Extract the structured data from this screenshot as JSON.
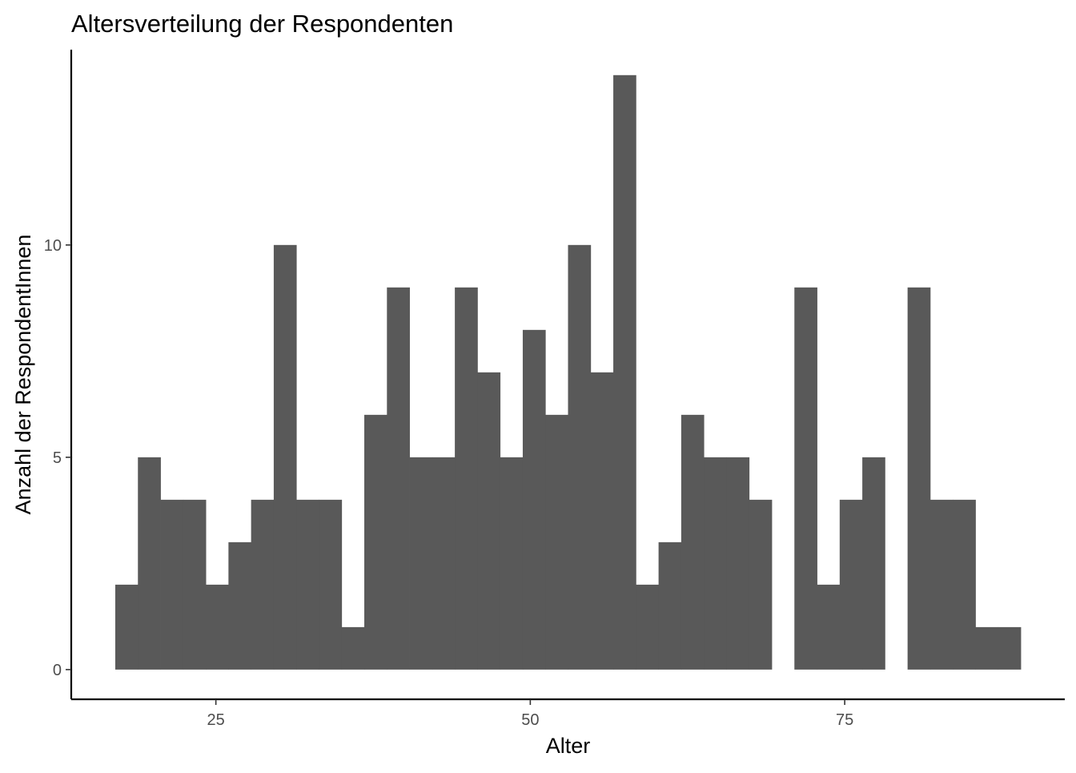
{
  "chart_data": {
    "type": "bar",
    "title": "Altersverteilung der Respondenten",
    "xlabel": "Alter",
    "ylabel": "Anzahl der RespondentInnen",
    "xlim": [
      13.5,
      92.5
    ],
    "ylim": [
      -0.7,
      14.6
    ],
    "xticks": [
      25,
      50,
      75
    ],
    "yticks": [
      0,
      5,
      10
    ],
    "grid": false,
    "bin_width": 1.8,
    "bins": [
      {
        "start": 17.0,
        "end": 18.8,
        "count": 2
      },
      {
        "start": 18.8,
        "end": 20.6,
        "count": 5
      },
      {
        "start": 20.6,
        "end": 22.4,
        "count": 4
      },
      {
        "start": 22.4,
        "end": 24.2,
        "count": 4
      },
      {
        "start": 24.2,
        "end": 26.0,
        "count": 2
      },
      {
        "start": 26.0,
        "end": 27.8,
        "count": 3
      },
      {
        "start": 27.8,
        "end": 29.6,
        "count": 4
      },
      {
        "start": 29.6,
        "end": 31.4,
        "count": 10
      },
      {
        "start": 31.4,
        "end": 33.2,
        "count": 4
      },
      {
        "start": 33.2,
        "end": 35.0,
        "count": 4
      },
      {
        "start": 35.0,
        "end": 36.8,
        "count": 1
      },
      {
        "start": 36.8,
        "end": 38.6,
        "count": 6
      },
      {
        "start": 38.6,
        "end": 40.4,
        "count": 9
      },
      {
        "start": 40.4,
        "end": 42.2,
        "count": 5
      },
      {
        "start": 42.2,
        "end": 44.0,
        "count": 5
      },
      {
        "start": 44.0,
        "end": 45.8,
        "count": 9
      },
      {
        "start": 45.8,
        "end": 47.6,
        "count": 7
      },
      {
        "start": 47.6,
        "end": 49.4,
        "count": 5
      },
      {
        "start": 49.4,
        "end": 51.2,
        "count": 8
      },
      {
        "start": 51.2,
        "end": 53.0,
        "count": 6
      },
      {
        "start": 53.0,
        "end": 54.8,
        "count": 10
      },
      {
        "start": 54.8,
        "end": 56.6,
        "count": 7
      },
      {
        "start": 56.6,
        "end": 58.4,
        "count": 14
      },
      {
        "start": 58.4,
        "end": 60.2,
        "count": 2
      },
      {
        "start": 60.2,
        "end": 62.0,
        "count": 3
      },
      {
        "start": 62.0,
        "end": 63.8,
        "count": 6
      },
      {
        "start": 63.8,
        "end": 65.6,
        "count": 5
      },
      {
        "start": 65.6,
        "end": 67.4,
        "count": 5
      },
      {
        "start": 67.4,
        "end": 69.2,
        "count": 4
      },
      {
        "start": 69.2,
        "end": 71.0,
        "count": 0
      },
      {
        "start": 71.0,
        "end": 72.8,
        "count": 9
      },
      {
        "start": 72.8,
        "end": 74.6,
        "count": 2
      },
      {
        "start": 74.6,
        "end": 76.4,
        "count": 4
      },
      {
        "start": 76.4,
        "end": 78.2,
        "count": 5
      },
      {
        "start": 78.2,
        "end": 80.0,
        "count": 0
      },
      {
        "start": 80.0,
        "end": 81.8,
        "count": 9
      },
      {
        "start": 81.8,
        "end": 83.6,
        "count": 4
      },
      {
        "start": 83.6,
        "end": 85.4,
        "count": 4
      },
      {
        "start": 85.4,
        "end": 87.2,
        "count": 1
      },
      {
        "start": 87.2,
        "end": 89.0,
        "count": 1
      }
    ],
    "bar_color": "#595959",
    "axis_color": "#000000",
    "tick_label_color": "#4d4d4d",
    "background": "#ffffff"
  }
}
